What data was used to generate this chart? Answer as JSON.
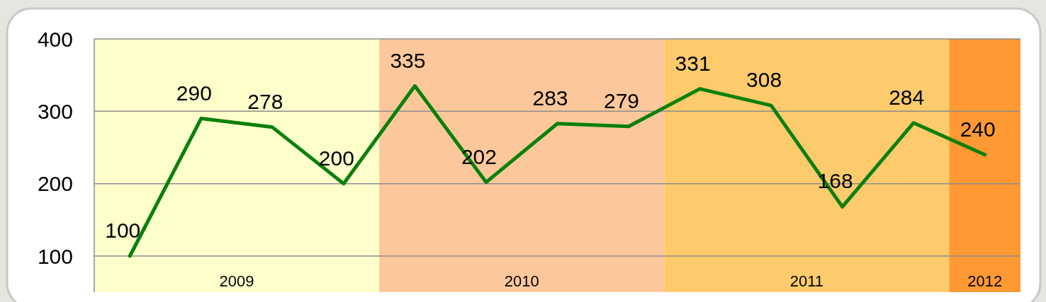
{
  "chart_data": {
    "type": "line",
    "x": [
      2009,
      2009.25,
      2009.5,
      2009.75,
      2010,
      2010.25,
      2010.5,
      2010.75,
      2011,
      2011.25,
      2011.5,
      2011.75,
      2012
    ],
    "series": [
      {
        "color": "#0a800a",
        "values": [
          100,
          290,
          278,
          200,
          335,
          202,
          283,
          279,
          331,
          308,
          168,
          284,
          240
        ]
      }
    ],
    "xlim": [
      2008.875,
      2012.125
    ],
    "xticks": [
      {
        "value": 2009.375,
        "label": "2009"
      },
      {
        "value": 2010.375,
        "label": "2010"
      },
      {
        "value": 2011.375,
        "label": "2011"
      },
      {
        "value": 2012,
        "label": "2012"
      }
    ],
    "ylim": [
      100,
      400
    ],
    "yticks": [
      100,
      200,
      300,
      400
    ],
    "grid": "y",
    "data_labels": true,
    "marker": "none",
    "line_style": "solid",
    "bands": [
      {
        "axis": "x",
        "from": 2008.875,
        "to": 2009.875,
        "color": "#ffffcc"
      },
      {
        "axis": "x",
        "from": 2009.875,
        "to": 2010.875,
        "color": "#fcc89b"
      },
      {
        "axis": "x",
        "from": 2010.875,
        "to": 2011.875,
        "color": "#fdcb6b"
      },
      {
        "axis": "x",
        "from": 2011.875,
        "to": 2012.125,
        "color": "#ff9933"
      }
    ]
  }
}
